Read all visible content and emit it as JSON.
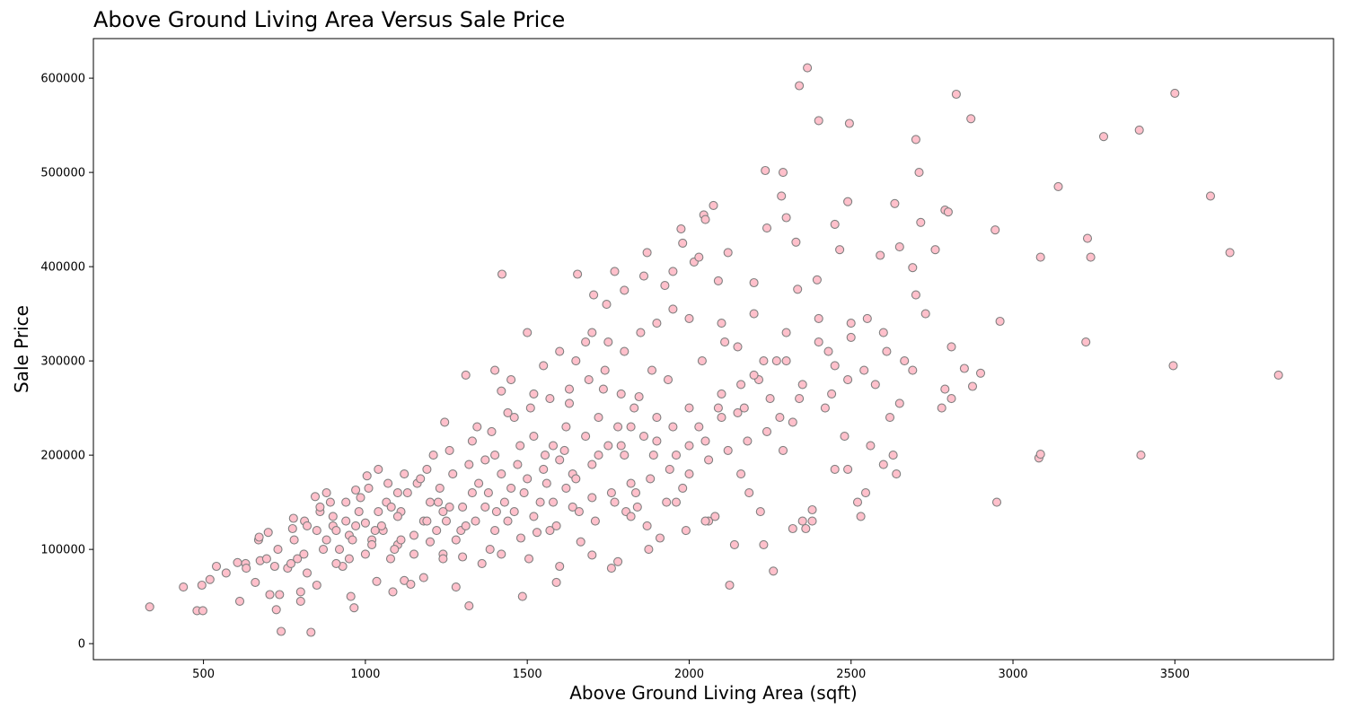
{
  "chart_data": {
    "type": "scatter",
    "title": "Above Ground Living Area Versus Sale Price",
    "xlabel": "Above Ground Living Area (sqft)",
    "ylabel": "Sale Price",
    "xlim": [
      160,
      3990
    ],
    "ylim": [
      -17000,
      642000
    ],
    "x_ticks": [
      500,
      1000,
      1500,
      2000,
      2500,
      3000,
      3500
    ],
    "x_tick_labels": [
      "500",
      "1000",
      "1500",
      "2000",
      "2500",
      "3000",
      "3500"
    ],
    "y_ticks": [
      0,
      100000,
      200000,
      300000,
      400000,
      500000,
      600000
    ],
    "y_tick_labels": [
      "0",
      "100000",
      "200000",
      "300000",
      "400000",
      "500000",
      "600000"
    ],
    "grid": false,
    "marker_fill": "#ffc0cb",
    "marker_edge": "#808080",
    "points": [
      [
        334,
        39000
      ],
      [
        438,
        60000
      ],
      [
        480,
        35000
      ],
      [
        495,
        62000
      ],
      [
        498,
        35000
      ],
      [
        520,
        68000
      ],
      [
        540,
        82000
      ],
      [
        570,
        75000
      ],
      [
        605,
        86000
      ],
      [
        612,
        45000
      ],
      [
        630,
        85000
      ],
      [
        632,
        80000
      ],
      [
        660,
        65000
      ],
      [
        670,
        110000
      ],
      [
        672,
        113000
      ],
      [
        675,
        88000
      ],
      [
        695,
        90000
      ],
      [
        700,
        118000
      ],
      [
        705,
        52000
      ],
      [
        720,
        82000
      ],
      [
        725,
        36000
      ],
      [
        730,
        100000
      ],
      [
        735,
        52000
      ],
      [
        740,
        13000
      ],
      [
        760,
        80000
      ],
      [
        770,
        85000
      ],
      [
        775,
        122000
      ],
      [
        778,
        133000
      ],
      [
        790,
        90000
      ],
      [
        800,
        55000
      ],
      [
        800,
        45000
      ],
      [
        810,
        95000
      ],
      [
        812,
        130000
      ],
      [
        820,
        75000
      ],
      [
        832,
        12000
      ],
      [
        845,
        156000
      ],
      [
        850,
        62000
      ],
      [
        860,
        140000
      ],
      [
        880,
        160000
      ],
      [
        892,
        150000
      ],
      [
        900,
        125000
      ],
      [
        910,
        120000
      ],
      [
        930,
        82000
      ],
      [
        940,
        130000
      ],
      [
        955,
        50000
      ],
      [
        965,
        38000
      ],
      [
        970,
        163000
      ],
      [
        985,
        155000
      ],
      [
        1000,
        128000
      ],
      [
        1005,
        178000
      ],
      [
        1020,
        110000
      ],
      [
        1035,
        66000
      ],
      [
        1040,
        185000
      ],
      [
        1055,
        120000
      ],
      [
        1065,
        150000
      ],
      [
        1078,
        90000
      ],
      [
        1085,
        55000
      ],
      [
        1100,
        105000
      ],
      [
        1110,
        140000
      ],
      [
        1120,
        67000
      ],
      [
        1140,
        63000
      ],
      [
        1160,
        170000
      ],
      [
        1180,
        130000
      ],
      [
        1200,
        108000
      ],
      [
        1210,
        200000
      ],
      [
        1225,
        150000
      ],
      [
        1240,
        95000
      ],
      [
        1245,
        235000
      ],
      [
        1260,
        145000
      ],
      [
        1280,
        60000
      ],
      [
        1295,
        120000
      ],
      [
        1310,
        285000
      ],
      [
        1320,
        40000
      ],
      [
        1330,
        160000
      ],
      [
        1345,
        230000
      ],
      [
        1370,
        195000
      ],
      [
        1385,
        100000
      ],
      [
        1405,
        140000
      ],
      [
        1420,
        268000
      ],
      [
        1422,
        392000
      ],
      [
        1440,
        130000
      ],
      [
        1460,
        240000
      ],
      [
        1478,
        210000
      ],
      [
        1485,
        50000
      ],
      [
        1500,
        330000
      ],
      [
        1505,
        90000
      ],
      [
        1520,
        265000
      ],
      [
        1540,
        150000
      ],
      [
        1555,
        200000
      ],
      [
        1570,
        120000
      ],
      [
        1590,
        65000
      ],
      [
        1600,
        82000
      ],
      [
        1615,
        205000
      ],
      [
        1630,
        255000
      ],
      [
        1640,
        180000
      ],
      [
        1655,
        392000
      ],
      [
        1665,
        108000
      ],
      [
        1680,
        320000
      ],
      [
        1700,
        94000
      ],
      [
        1705,
        370000
      ],
      [
        1720,
        200000
      ],
      [
        1735,
        270000
      ],
      [
        1745,
        360000
      ],
      [
        1760,
        80000
      ],
      [
        1770,
        395000
      ],
      [
        1780,
        87000
      ],
      [
        1790,
        210000
      ],
      [
        1800,
        375000
      ],
      [
        1805,
        140000
      ],
      [
        1820,
        230000
      ],
      [
        1835,
        160000
      ],
      [
        1845,
        262000
      ],
      [
        1860,
        390000
      ],
      [
        1870,
        415000
      ],
      [
        1875,
        100000
      ],
      [
        1885,
        290000
      ],
      [
        1900,
        215000
      ],
      [
        1910,
        112000
      ],
      [
        1925,
        380000
      ],
      [
        1935,
        280000
      ],
      [
        1950,
        395000
      ],
      [
        1960,
        150000
      ],
      [
        1975,
        440000
      ],
      [
        1980,
        425000
      ],
      [
        1990,
        120000
      ],
      [
        2000,
        210000
      ],
      [
        2015,
        405000
      ],
      [
        2030,
        410000
      ],
      [
        2040,
        300000
      ],
      [
        2045,
        455000
      ],
      [
        2050,
        450000
      ],
      [
        2060,
        130000
      ],
      [
        2075,
        465000
      ],
      [
        2080,
        135000
      ],
      [
        2090,
        385000
      ],
      [
        2100,
        240000
      ],
      [
        2110,
        320000
      ],
      [
        2120,
        415000
      ],
      [
        2125,
        62000
      ],
      [
        2140,
        105000
      ],
      [
        2150,
        315000
      ],
      [
        2170,
        250000
      ],
      [
        2185,
        160000
      ],
      [
        2200,
        383000
      ],
      [
        2215,
        280000
      ],
      [
        2230,
        105000
      ],
      [
        2235,
        502000
      ],
      [
        2240,
        441000
      ],
      [
        2260,
        77000
      ],
      [
        2270,
        300000
      ],
      [
        2285,
        475000
      ],
      [
        2290,
        500000
      ],
      [
        2300,
        452000
      ],
      [
        2320,
        122000
      ],
      [
        2330,
        426000
      ],
      [
        2335,
        376000
      ],
      [
        2340,
        592000
      ],
      [
        2350,
        130000
      ],
      [
        2360,
        122000
      ],
      [
        2365,
        611000
      ],
      [
        2380,
        142000
      ],
      [
        2395,
        386000
      ],
      [
        2400,
        555000
      ],
      [
        2430,
        310000
      ],
      [
        2450,
        445000
      ],
      [
        2465,
        418000
      ],
      [
        2480,
        220000
      ],
      [
        2490,
        469000
      ],
      [
        2495,
        552000
      ],
      [
        2500,
        340000
      ],
      [
        2520,
        150000
      ],
      [
        2530,
        135000
      ],
      [
        2545,
        160000
      ],
      [
        2560,
        210000
      ],
      [
        2575,
        275000
      ],
      [
        2590,
        412000
      ],
      [
        2600,
        190000
      ],
      [
        2610,
        310000
      ],
      [
        2620,
        240000
      ],
      [
        2630,
        200000
      ],
      [
        2635,
        467000
      ],
      [
        2640,
        180000
      ],
      [
        2650,
        421000
      ],
      [
        2665,
        300000
      ],
      [
        2690,
        399000
      ],
      [
        2700,
        535000
      ],
      [
        2710,
        500000
      ],
      [
        2715,
        447000
      ],
      [
        2730,
        350000
      ],
      [
        2760,
        418000
      ],
      [
        2780,
        250000
      ],
      [
        2790,
        460000
      ],
      [
        2800,
        458000
      ],
      [
        2810,
        315000
      ],
      [
        2825,
        583000
      ],
      [
        2850,
        292000
      ],
      [
        2870,
        557000
      ],
      [
        2875,
        273000
      ],
      [
        2900,
        287000
      ],
      [
        2945,
        439000
      ],
      [
        2950,
        150000
      ],
      [
        2960,
        342000
      ],
      [
        3080,
        197000
      ],
      [
        3085,
        201000
      ],
      [
        3085,
        410000
      ],
      [
        3140,
        485000
      ],
      [
        3225,
        320000
      ],
      [
        3230,
        430000
      ],
      [
        3240,
        410000
      ],
      [
        3280,
        538000
      ],
      [
        3395,
        200000
      ],
      [
        3390,
        545000
      ],
      [
        3495,
        295000
      ],
      [
        3500,
        584000
      ],
      [
        3610,
        475000
      ],
      [
        3670,
        415000
      ],
      [
        3820,
        285000
      ],
      [
        850,
        120000
      ],
      [
        880,
        110000
      ],
      [
        900,
        135000
      ],
      [
        920,
        100000
      ],
      [
        950,
        115000
      ],
      [
        980,
        140000
      ],
      [
        1000,
        95000
      ],
      [
        1050,
        125000
      ],
      [
        1080,
        145000
      ],
      [
        1100,
        135000
      ],
      [
        1130,
        160000
      ],
      [
        1150,
        115000
      ],
      [
        1170,
        175000
      ],
      [
        1200,
        150000
      ],
      [
        1230,
        165000
      ],
      [
        1250,
        130000
      ],
      [
        1270,
        180000
      ],
      [
        1300,
        145000
      ],
      [
        1320,
        190000
      ],
      [
        1350,
        170000
      ],
      [
        1380,
        160000
      ],
      [
        1400,
        200000
      ],
      [
        1420,
        180000
      ],
      [
        1450,
        165000
      ],
      [
        1470,
        190000
      ],
      [
        1500,
        175000
      ],
      [
        1520,
        220000
      ],
      [
        1550,
        185000
      ],
      [
        1580,
        210000
      ],
      [
        1600,
        195000
      ],
      [
        1620,
        230000
      ],
      [
        1650,
        175000
      ],
      [
        1680,
        220000
      ],
      [
        1700,
        190000
      ],
      [
        1720,
        240000
      ],
      [
        1750,
        210000
      ],
      [
        1780,
        230000
      ],
      [
        1800,
        200000
      ],
      [
        1830,
        250000
      ],
      [
        1860,
        220000
      ],
      [
        1900,
        240000
      ],
      [
        1950,
        230000
      ],
      [
        2000,
        250000
      ],
      [
        2050,
        215000
      ],
      [
        2100,
        265000
      ],
      [
        2150,
        245000
      ],
      [
        2200,
        285000
      ],
      [
        2250,
        260000
      ],
      [
        2300,
        300000
      ],
      [
        2350,
        275000
      ],
      [
        2400,
        320000
      ],
      [
        2450,
        295000
      ],
      [
        2500,
        325000
      ],
      [
        2550,
        345000
      ],
      [
        2600,
        330000
      ],
      [
        2700,
        370000
      ],
      [
        950,
        90000
      ],
      [
        1020,
        105000
      ],
      [
        1090,
        100000
      ],
      [
        1150,
        95000
      ],
      [
        1220,
        120000
      ],
      [
        1280,
        110000
      ],
      [
        1340,
        130000
      ],
      [
        1400,
        120000
      ],
      [
        1460,
        140000
      ],
      [
        1520,
        135000
      ],
      [
        1580,
        150000
      ],
      [
        1640,
        145000
      ],
      [
        1700,
        155000
      ],
      [
        1760,
        160000
      ],
      [
        1820,
        170000
      ],
      [
        1880,
        175000
      ],
      [
        1940,
        185000
      ],
      [
        2000,
        180000
      ],
      [
        2060,
        195000
      ],
      [
        2120,
        205000
      ],
      [
        2180,
        215000
      ],
      [
        2240,
        225000
      ],
      [
        2320,
        235000
      ],
      [
        2420,
        250000
      ],
      [
        1400,
        290000
      ],
      [
        1450,
        280000
      ],
      [
        1550,
        295000
      ],
      [
        1600,
        310000
      ],
      [
        1650,
        300000
      ],
      [
        1700,
        330000
      ],
      [
        1750,
        320000
      ],
      [
        1800,
        310000
      ],
      [
        1850,
        330000
      ],
      [
        1900,
        340000
      ],
      [
        1950,
        355000
      ],
      [
        2000,
        345000
      ],
      [
        2100,
        340000
      ],
      [
        2200,
        350000
      ],
      [
        2300,
        330000
      ],
      [
        2400,
        345000
      ],
      [
        860,
        145000
      ],
      [
        940,
        150000
      ],
      [
        1010,
        165000
      ],
      [
        1070,
        170000
      ],
      [
        1120,
        180000
      ],
      [
        1190,
        185000
      ],
      [
        1260,
        205000
      ],
      [
        1330,
        215000
      ],
      [
        1390,
        225000
      ],
      [
        1440,
        245000
      ],
      [
        1510,
        250000
      ],
      [
        1570,
        260000
      ],
      [
        1630,
        270000
      ],
      [
        1690,
        280000
      ],
      [
        1740,
        290000
      ],
      [
        1790,
        265000
      ],
      [
        780,
        110000
      ],
      [
        820,
        125000
      ],
      [
        870,
        100000
      ],
      [
        910,
        85000
      ],
      [
        960,
        110000
      ],
      [
        1030,
        120000
      ],
      [
        1110,
        110000
      ],
      [
        1190,
        130000
      ],
      [
        1240,
        140000
      ],
      [
        1310,
        125000
      ],
      [
        1370,
        145000
      ],
      [
        1430,
        150000
      ],
      [
        1490,
        160000
      ],
      [
        1560,
        170000
      ],
      [
        1620,
        165000
      ],
      [
        1660,
        140000
      ],
      [
        1710,
        130000
      ],
      [
        1770,
        150000
      ],
      [
        1840,
        145000
      ],
      [
        1890,
        200000
      ],
      [
        1960,
        200000
      ],
      [
        2030,
        230000
      ],
      [
        2090,
        250000
      ],
      [
        2160,
        275000
      ],
      [
        2230,
        300000
      ],
      [
        2280,
        240000
      ],
      [
        2340,
        260000
      ],
      [
        2440,
        265000
      ],
      [
        2490,
        280000
      ],
      [
        2540,
        290000
      ],
      [
        2650,
        255000
      ],
      [
        2690,
        290000
      ],
      [
        2790,
        270000
      ],
      [
        2810,
        260000
      ],
      [
        2450,
        185000
      ],
      [
        2490,
        185000
      ],
      [
        2220,
        140000
      ],
      [
        2380,
        130000
      ],
      [
        2290,
        205000
      ],
      [
        2160,
        180000
      ],
      [
        1180,
        70000
      ],
      [
        1240,
        90000
      ],
      [
        1300,
        92000
      ],
      [
        1360,
        85000
      ],
      [
        1420,
        95000
      ],
      [
        1480,
        112000
      ],
      [
        1530,
        118000
      ],
      [
        1590,
        125000
      ],
      [
        2050,
        130000
      ],
      [
        1980,
        165000
      ],
      [
        1930,
        150000
      ],
      [
        1870,
        125000
      ],
      [
        1820,
        135000
      ],
      [
        1100,
        160000
      ],
      [
        1040,
        140000
      ],
      [
        970,
        125000
      ]
    ]
  }
}
